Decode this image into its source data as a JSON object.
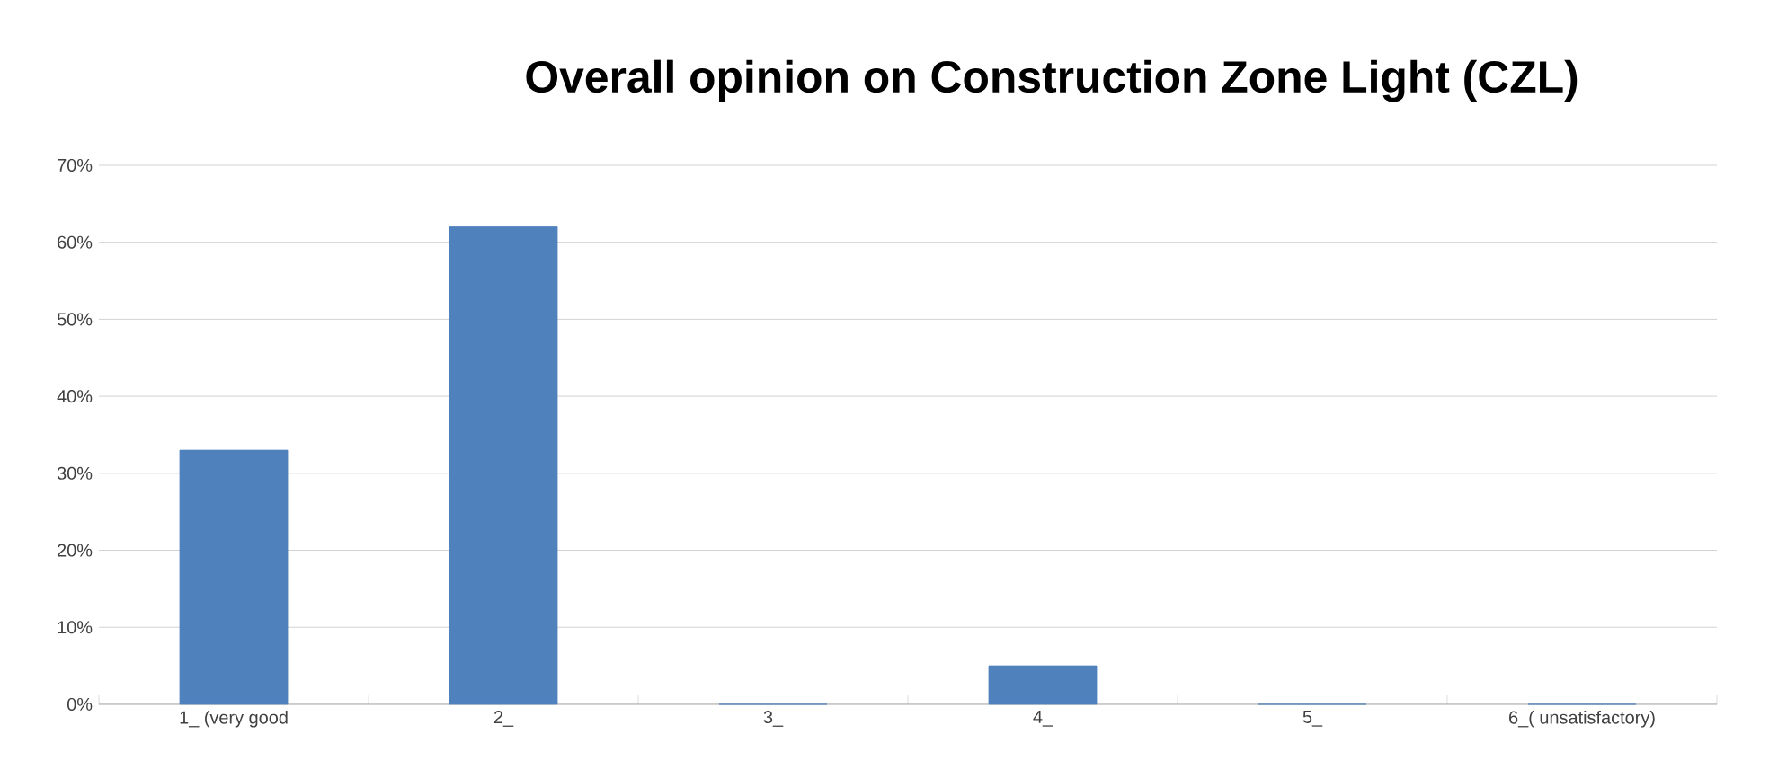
{
  "chart_data": {
    "type": "bar",
    "title": "Overall opinion on Construction Zone Light (CZL)",
    "categories": [
      "1_ (very good",
      "2_",
      "3_",
      "4_",
      "5_",
      "6_( unsatisfactory)"
    ],
    "values": [
      33,
      62,
      0,
      5,
      0,
      0
    ],
    "color": "#4f81bd",
    "ylim": [
      0,
      70
    ],
    "yticks": [
      {
        "value": 0,
        "label": "0%"
      },
      {
        "value": 10,
        "label": "10%"
      },
      {
        "value": 20,
        "label": "20%"
      },
      {
        "value": 30,
        "label": "30%"
      },
      {
        "value": 40,
        "label": "40%"
      },
      {
        "value": 50,
        "label": "50%"
      },
      {
        "value": 60,
        "label": "60%"
      },
      {
        "value": 70,
        "label": "70%"
      }
    ],
    "grid": "y"
  }
}
